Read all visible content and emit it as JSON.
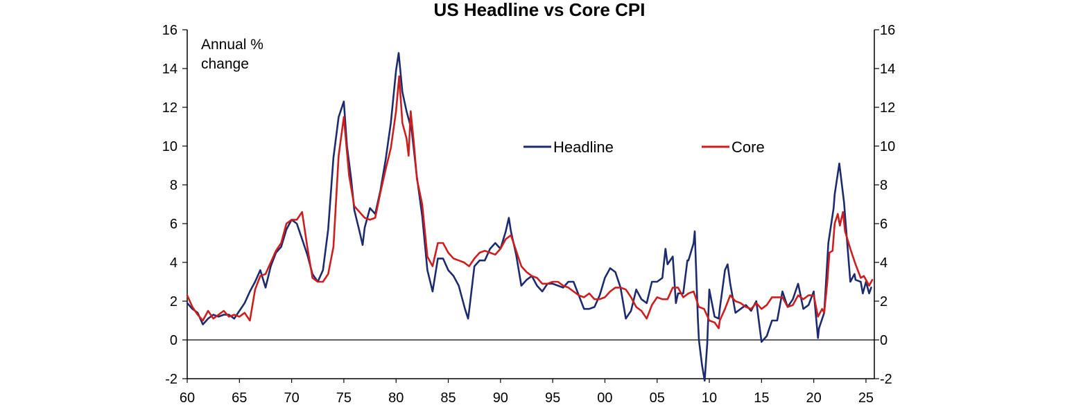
{
  "chart_data": {
    "type": "line",
    "title": "US Headline vs Core CPI",
    "annotation": [
      "Annual %",
      "change"
    ],
    "xlabel": "",
    "ylabel": "",
    "xlim": [
      1960,
      2025.8
    ],
    "ylim": [
      -2,
      16
    ],
    "y_ticks": [
      -2,
      0,
      2,
      4,
      6,
      8,
      10,
      12,
      14,
      16
    ],
    "x_ticks": [
      {
        "year": 1960,
        "label": "60"
      },
      {
        "year": 1965,
        "label": "65"
      },
      {
        "year": 1970,
        "label": "70"
      },
      {
        "year": 1975,
        "label": "75"
      },
      {
        "year": 1980,
        "label": "80"
      },
      {
        "year": 1985,
        "label": "85"
      },
      {
        "year": 1990,
        "label": "90"
      },
      {
        "year": 1995,
        "label": "95"
      },
      {
        "year": 2000,
        "label": "00"
      },
      {
        "year": 2005,
        "label": "05"
      },
      {
        "year": 2010,
        "label": "10"
      },
      {
        "year": 2015,
        "label": "15"
      },
      {
        "year": 2020,
        "label": "20"
      },
      {
        "year": 2025,
        "label": "25"
      }
    ],
    "grid": false,
    "dual_y_axis": true,
    "legend_position": "upper-right",
    "series": [
      {
        "name": "Headline",
        "color": "#1c2a6e",
        "points": [
          [
            1960,
            1.9
          ],
          [
            1960.5,
            1.6
          ],
          [
            1961,
            1.4
          ],
          [
            1961.5,
            0.8
          ],
          [
            1962,
            1.1
          ],
          [
            1962.5,
            1.3
          ],
          [
            1963,
            1.2
          ],
          [
            1963.5,
            1.3
          ],
          [
            1964,
            1.3
          ],
          [
            1964.5,
            1.1
          ],
          [
            1965,
            1.5
          ],
          [
            1965.5,
            1.9
          ],
          [
            1966,
            2.5
          ],
          [
            1966.5,
            3.0
          ],
          [
            1967,
            3.6
          ],
          [
            1967.5,
            2.7
          ],
          [
            1968,
            3.8
          ],
          [
            1968.5,
            4.5
          ],
          [
            1969,
            4.8
          ],
          [
            1969.5,
            5.7
          ],
          [
            1970,
            6.2
          ],
          [
            1970.5,
            6.0
          ],
          [
            1971,
            5.2
          ],
          [
            1971.5,
            4.4
          ],
          [
            1972,
            3.4
          ],
          [
            1972.5,
            3.0
          ],
          [
            1973,
            3.6
          ],
          [
            1973.5,
            5.7
          ],
          [
            1974,
            9.4
          ],
          [
            1974.5,
            11.5
          ],
          [
            1975,
            12.3
          ],
          [
            1975.3,
            10.0
          ],
          [
            1975.7,
            8.3
          ],
          [
            1976,
            6.7
          ],
          [
            1976.5,
            5.6
          ],
          [
            1976.8,
            4.9
          ],
          [
            1977,
            5.8
          ],
          [
            1977.5,
            6.8
          ],
          [
            1978,
            6.5
          ],
          [
            1978.5,
            7.7
          ],
          [
            1979,
            9.3
          ],
          [
            1979.5,
            11.2
          ],
          [
            1980,
            13.9
          ],
          [
            1980.25,
            14.8
          ],
          [
            1980.6,
            12.8
          ],
          [
            1981,
            11.8
          ],
          [
            1981.5,
            10.8
          ],
          [
            1982,
            8.4
          ],
          [
            1982.5,
            6.4
          ],
          [
            1983,
            3.6
          ],
          [
            1983.5,
            2.5
          ],
          [
            1984,
            4.2
          ],
          [
            1984.5,
            4.2
          ],
          [
            1985,
            3.6
          ],
          [
            1985.5,
            3.3
          ],
          [
            1986,
            2.8
          ],
          [
            1986.6,
            1.6
          ],
          [
            1986.9,
            1.1
          ],
          [
            1987,
            1.5
          ],
          [
            1987.5,
            3.8
          ],
          [
            1988,
            4.1
          ],
          [
            1988.5,
            4.1
          ],
          [
            1989,
            4.7
          ],
          [
            1989.5,
            5.0
          ],
          [
            1990,
            4.7
          ],
          [
            1990.5,
            5.6
          ],
          [
            1990.8,
            6.3
          ],
          [
            1991,
            5.6
          ],
          [
            1991.5,
            4.4
          ],
          [
            1992,
            2.8
          ],
          [
            1992.5,
            3.1
          ],
          [
            1993,
            3.3
          ],
          [
            1993.5,
            2.8
          ],
          [
            1994,
            2.5
          ],
          [
            1994.5,
            2.9
          ],
          [
            1995,
            2.9
          ],
          [
            1995.5,
            2.8
          ],
          [
            1996,
            2.7
          ],
          [
            1996.5,
            3.0
          ],
          [
            1997,
            3.0
          ],
          [
            1997.5,
            2.3
          ],
          [
            1998,
            1.6
          ],
          [
            1998.5,
            1.6
          ],
          [
            1999,
            1.7
          ],
          [
            1999.5,
            2.3
          ],
          [
            2000,
            3.2
          ],
          [
            2000.5,
            3.7
          ],
          [
            2001,
            3.5
          ],
          [
            2001.5,
            2.7
          ],
          [
            2002,
            1.1
          ],
          [
            2002.5,
            1.5
          ],
          [
            2003,
            2.6
          ],
          [
            2003.5,
            2.1
          ],
          [
            2004,
            1.9
          ],
          [
            2004.5,
            3.0
          ],
          [
            2005,
            3.0
          ],
          [
            2005.5,
            3.2
          ],
          [
            2005.8,
            4.7
          ],
          [
            2006,
            3.9
          ],
          [
            2006.5,
            4.3
          ],
          [
            2006.8,
            1.9
          ],
          [
            2007,
            2.4
          ],
          [
            2007.5,
            2.4
          ],
          [
            2007.9,
            4.1
          ],
          [
            2008,
            4.1
          ],
          [
            2008.5,
            5.0
          ],
          [
            2008.6,
            5.6
          ],
          [
            2008.9,
            1.1
          ],
          [
            2009,
            0.0
          ],
          [
            2009.3,
            -1.3
          ],
          [
            2009.55,
            -2.1
          ],
          [
            2009.8,
            -0.2
          ],
          [
            2010,
            2.6
          ],
          [
            2010.5,
            1.2
          ],
          [
            2010.9,
            1.1
          ],
          [
            2011,
            1.6
          ],
          [
            2011.5,
            3.6
          ],
          [
            2011.75,
            3.9
          ],
          [
            2012,
            2.9
          ],
          [
            2012.5,
            1.4
          ],
          [
            2013,
            1.6
          ],
          [
            2013.5,
            1.8
          ],
          [
            2014,
            1.5
          ],
          [
            2014.5,
            2.0
          ],
          [
            2015,
            -0.1
          ],
          [
            2015.5,
            0.2
          ],
          [
            2016,
            1.0
          ],
          [
            2016.5,
            1.0
          ],
          [
            2017,
            2.5
          ],
          [
            2017.5,
            1.7
          ],
          [
            2018,
            2.1
          ],
          [
            2018.5,
            2.9
          ],
          [
            2019,
            1.6
          ],
          [
            2019.5,
            1.8
          ],
          [
            2020,
            2.5
          ],
          [
            2020.4,
            0.1
          ],
          [
            2020.5,
            0.6
          ],
          [
            2021,
            1.4
          ],
          [
            2021.4,
            5.0
          ],
          [
            2021.9,
            6.8
          ],
          [
            2022,
            7.5
          ],
          [
            2022.45,
            9.1
          ],
          [
            2022.9,
            7.1
          ],
          [
            2023,
            6.4
          ],
          [
            2023.5,
            3.0
          ],
          [
            2023.9,
            3.4
          ],
          [
            2024,
            3.1
          ],
          [
            2024.5,
            3.0
          ],
          [
            2024.7,
            2.4
          ],
          [
            2025,
            3.0
          ],
          [
            2025.3,
            2.4
          ],
          [
            2025.5,
            2.7
          ]
        ]
      },
      {
        "name": "Core",
        "color": "#cc1e1e",
        "points": [
          [
            1960,
            2.3
          ],
          [
            1960.5,
            1.7
          ],
          [
            1961,
            1.3
          ],
          [
            1961.5,
            1.0
          ],
          [
            1962,
            1.5
          ],
          [
            1962.5,
            1.1
          ],
          [
            1963,
            1.3
          ],
          [
            1963.5,
            1.5
          ],
          [
            1964,
            1.2
          ],
          [
            1964.5,
            1.3
          ],
          [
            1965,
            1.2
          ],
          [
            1965.5,
            1.4
          ],
          [
            1966,
            1.0
          ],
          [
            1966.5,
            2.6
          ],
          [
            1967,
            3.3
          ],
          [
            1967.5,
            3.4
          ],
          [
            1968,
            4.0
          ],
          [
            1968.5,
            4.6
          ],
          [
            1969,
            5.0
          ],
          [
            1969.5,
            6.0
          ],
          [
            1970,
            6.2
          ],
          [
            1970.5,
            6.2
          ],
          [
            1971,
            6.6
          ],
          [
            1971.5,
            4.8
          ],
          [
            1972,
            3.2
          ],
          [
            1972.5,
            3.0
          ],
          [
            1973,
            3.0
          ],
          [
            1973.5,
            3.4
          ],
          [
            1974,
            4.8
          ],
          [
            1974.5,
            9.5
          ],
          [
            1975,
            11.5
          ],
          [
            1975.5,
            8.5
          ],
          [
            1976,
            6.9
          ],
          [
            1976.5,
            6.6
          ],
          [
            1977,
            6.3
          ],
          [
            1977.5,
            6.2
          ],
          [
            1978,
            6.3
          ],
          [
            1978.5,
            7.6
          ],
          [
            1979,
            8.8
          ],
          [
            1979.5,
            9.9
          ],
          [
            1980,
            11.8
          ],
          [
            1980.3,
            13.6
          ],
          [
            1980.6,
            11.2
          ],
          [
            1981,
            10.4
          ],
          [
            1981.2,
            9.5
          ],
          [
            1981.4,
            11.8
          ],
          [
            1981.7,
            10.2
          ],
          [
            1982,
            8.3
          ],
          [
            1982.5,
            7.0
          ],
          [
            1983,
            4.3
          ],
          [
            1983.5,
            3.8
          ],
          [
            1984,
            5.0
          ],
          [
            1984.5,
            5.0
          ],
          [
            1985,
            4.5
          ],
          [
            1985.5,
            4.2
          ],
          [
            1986,
            4.1
          ],
          [
            1986.5,
            4.0
          ],
          [
            1987,
            3.8
          ],
          [
            1987.5,
            4.2
          ],
          [
            1988,
            4.5
          ],
          [
            1988.5,
            4.6
          ],
          [
            1989,
            4.5
          ],
          [
            1989.5,
            4.4
          ],
          [
            1990,
            4.7
          ],
          [
            1990.5,
            5.2
          ],
          [
            1991,
            5.4
          ],
          [
            1991.5,
            4.6
          ],
          [
            1992,
            3.8
          ],
          [
            1992.5,
            3.5
          ],
          [
            1993,
            3.3
          ],
          [
            1993.5,
            3.2
          ],
          [
            1994,
            2.9
          ],
          [
            1994.5,
            2.9
          ],
          [
            1995,
            3.0
          ],
          [
            1995.5,
            3.0
          ],
          [
            1996,
            2.8
          ],
          [
            1996.5,
            2.7
          ],
          [
            1997,
            2.5
          ],
          [
            1997.5,
            2.3
          ],
          [
            1998,
            2.2
          ],
          [
            1998.5,
            2.4
          ],
          [
            1999,
            2.1
          ],
          [
            1999.5,
            2.1
          ],
          [
            2000,
            2.2
          ],
          [
            2000.5,
            2.5
          ],
          [
            2001,
            2.7
          ],
          [
            2001.5,
            2.7
          ],
          [
            2002,
            2.6
          ],
          [
            2002.5,
            2.2
          ],
          [
            2003,
            1.7
          ],
          [
            2003.5,
            1.5
          ],
          [
            2004,
            1.1
          ],
          [
            2004.5,
            1.8
          ],
          [
            2005,
            2.2
          ],
          [
            2005.5,
            2.1
          ],
          [
            2006,
            2.1
          ],
          [
            2006.5,
            2.7
          ],
          [
            2007,
            2.7
          ],
          [
            2007.5,
            2.2
          ],
          [
            2008,
            2.4
          ],
          [
            2008.5,
            2.5
          ],
          [
            2009,
            1.7
          ],
          [
            2009.5,
            1.6
          ],
          [
            2010,
            1.0
          ],
          [
            2010.5,
            0.9
          ],
          [
            2010.9,
            0.6
          ],
          [
            2011,
            1.0
          ],
          [
            2011.5,
            1.6
          ],
          [
            2012,
            2.3
          ],
          [
            2012.5,
            2.0
          ],
          [
            2013,
            1.9
          ],
          [
            2013.5,
            1.7
          ],
          [
            2014,
            1.6
          ],
          [
            2014.5,
            1.9
          ],
          [
            2015,
            1.6
          ],
          [
            2015.5,
            1.8
          ],
          [
            2016,
            2.2
          ],
          [
            2016.5,
            2.2
          ],
          [
            2017,
            2.2
          ],
          [
            2017.5,
            1.7
          ],
          [
            2018,
            1.8
          ],
          [
            2018.5,
            2.3
          ],
          [
            2019,
            2.1
          ],
          [
            2019.5,
            2.3
          ],
          [
            2020,
            2.3
          ],
          [
            2020.4,
            1.2
          ],
          [
            2020.8,
            1.6
          ],
          [
            2021,
            1.4
          ],
          [
            2021.3,
            3.0
          ],
          [
            2021.5,
            4.5
          ],
          [
            2021.8,
            4.6
          ],
          [
            2022,
            6.0
          ],
          [
            2022.3,
            6.5
          ],
          [
            2022.5,
            5.9
          ],
          [
            2022.8,
            6.6
          ],
          [
            2023,
            5.6
          ],
          [
            2023.5,
            4.7
          ],
          [
            2024,
            3.9
          ],
          [
            2024.5,
            3.2
          ],
          [
            2024.8,
            3.3
          ],
          [
            2025,
            3.1
          ],
          [
            2025.3,
            2.8
          ],
          [
            2025.6,
            3.1
          ]
        ]
      }
    ]
  }
}
